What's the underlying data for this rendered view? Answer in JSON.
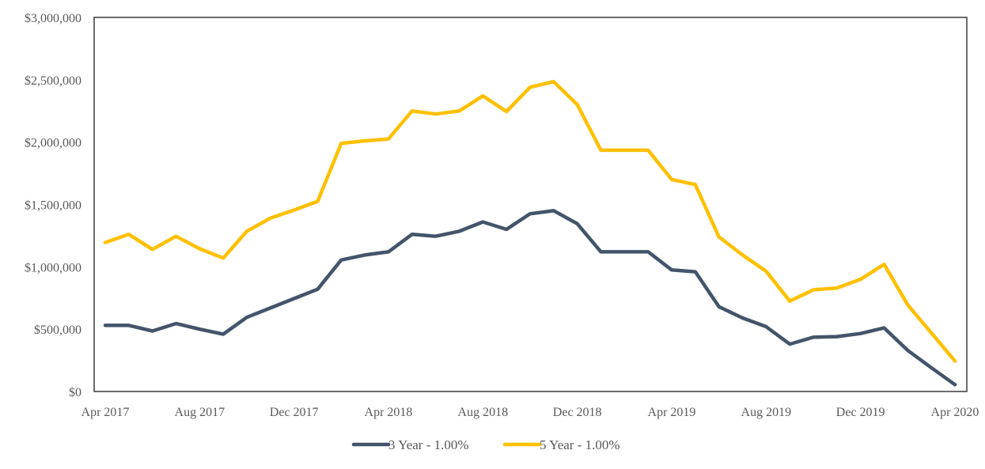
{
  "chart_data": {
    "type": "line",
    "title": "",
    "xlabel": "",
    "ylabel": "",
    "ylim": [
      0,
      3000000
    ],
    "yticks": [
      0,
      500000,
      1000000,
      1500000,
      2000000,
      2500000,
      3000000
    ],
    "ytick_labels": [
      "$0",
      "$500,000",
      "$1,000,000",
      "$1,500,000",
      "$2,000,000",
      "$2,500,000",
      "$3,000,000"
    ],
    "x": [
      "Apr 2017",
      "May 2017",
      "Jun 2017",
      "Jul 2017",
      "Aug 2017",
      "Sep 2017",
      "Oct 2017",
      "Nov 2017",
      "Dec 2017",
      "Jan 2018",
      "Feb 2018",
      "Mar 2018",
      "Apr 2018",
      "May 2018",
      "Jun 2018",
      "Jul 2018",
      "Aug 2018",
      "Sep 2018",
      "Oct 2018",
      "Nov 2018",
      "Dec 2018",
      "Jan 2019",
      "Feb 2019",
      "Mar 2019",
      "Apr 2019",
      "May 2019",
      "Jun 2019",
      "Jul 2019",
      "Aug 2019",
      "Sep 2019",
      "Oct 2019",
      "Nov 2019",
      "Dec 2019",
      "Jan 2020",
      "Feb 2020",
      "Mar 2020",
      "Apr 2020"
    ],
    "xtick_labels": [
      {
        "index": 0,
        "label": "Apr 2017"
      },
      {
        "index": 4,
        "label": "Aug 2017"
      },
      {
        "index": 8,
        "label": "Dec 2017"
      },
      {
        "index": 12,
        "label": "Apr 2018"
      },
      {
        "index": 16,
        "label": "Aug 2018"
      },
      {
        "index": 20,
        "label": "Dec 2018"
      },
      {
        "index": 24,
        "label": "Apr 2019"
      },
      {
        "index": 28,
        "label": "Aug 2019"
      },
      {
        "index": 32,
        "label": "Dec 2019"
      },
      {
        "index": 36,
        "label": "Apr 2020"
      }
    ],
    "series": [
      {
        "name": "3 Year - 1.00%",
        "color": "#44546A",
        "values": [
          530000,
          530000,
          485000,
          545000,
          500000,
          460000,
          595000,
          670000,
          745000,
          820000,
          1055000,
          1095000,
          1120000,
          1260000,
          1245000,
          1285000,
          1360000,
          1300000,
          1425000,
          1450000,
          1345000,
          1120000,
          1120000,
          1120000,
          975000,
          960000,
          680000,
          590000,
          520000,
          380000,
          435000,
          440000,
          465000,
          510000,
          330000,
          190000,
          55000
        ]
      },
      {
        "name": "5 Year - 1.00%",
        "color": "#FFC000",
        "values": [
          1195000,
          1260000,
          1140000,
          1245000,
          1145000,
          1070000,
          1285000,
          1390000,
          1455000,
          1525000,
          1990000,
          2010000,
          2025000,
          2250000,
          2225000,
          2250000,
          2370000,
          2245000,
          2440000,
          2485000,
          2300000,
          1935000,
          1935000,
          1935000,
          1700000,
          1660000,
          1240000,
          1095000,
          965000,
          725000,
          815000,
          830000,
          900000,
          1020000,
          695000,
          470000,
          245000
        ]
      }
    ],
    "legend_position": "bottom-center",
    "grid": false
  }
}
